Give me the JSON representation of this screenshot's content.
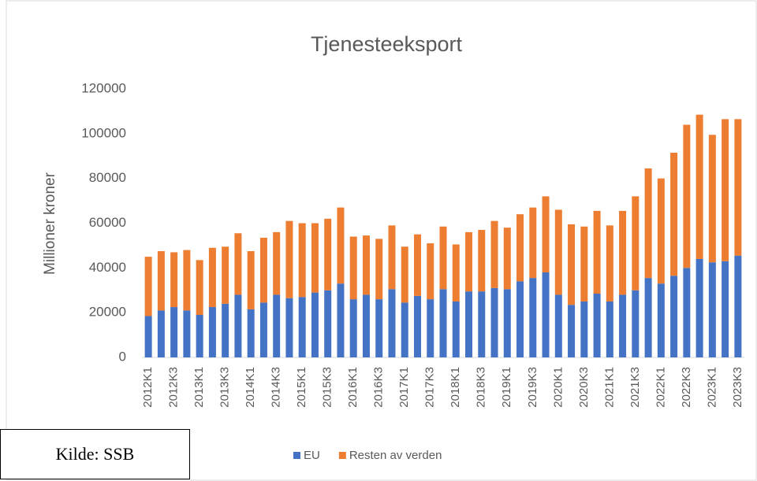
{
  "chart_data": {
    "type": "stacked_bar",
    "title": "Tjenesteeksport",
    "y_label": "Millioner kroner",
    "categories": [
      "2012K1",
      null,
      "2012K3",
      null,
      "2013K1",
      null,
      "2013K3",
      null,
      "2014K1",
      null,
      "2014K3",
      null,
      "2015K1",
      null,
      "2015K3",
      null,
      "2016K1",
      null,
      "2016K3",
      null,
      "2017K1",
      null,
      "2017K3",
      null,
      "2018K1",
      null,
      "2018K3",
      null,
      "2019K1",
      null,
      "2019K3",
      null,
      "2020K1",
      null,
      "2020K3",
      null,
      "2021K1",
      null,
      "2021K3",
      null,
      "2022K1",
      null,
      "2022K3",
      null,
      "2023K1",
      null,
      "2023K3"
    ],
    "series": [
      {
        "name": "EU",
        "color": "#4472c4",
        "values": [
          18500,
          21000,
          22500,
          21000,
          19000,
          22500,
          24000,
          28000,
          21500,
          24500,
          28000,
          26500,
          27000,
          29000,
          30000,
          33000,
          26000,
          28000,
          26000,
          30500,
          24500,
          27500,
          26000,
          30500,
          25000,
          29500,
          29500,
          31000,
          30500,
          34000,
          35500,
          38000,
          28000,
          23500,
          25000,
          28500,
          25000,
          28000,
          30000,
          35500,
          33000,
          36500,
          40000,
          44000,
          42500,
          43000,
          45500
        ]
      },
      {
        "name": "Resten av verden",
        "color": "#ed7d31",
        "values": [
          26500,
          26500,
          24500,
          27000,
          24500,
          26500,
          25500,
          27500,
          26000,
          29000,
          28000,
          34500,
          33000,
          31000,
          32000,
          34000,
          28000,
          26500,
          27000,
          28500,
          25000,
          27500,
          25000,
          28000,
          25500,
          26500,
          27500,
          30000,
          27500,
          30000,
          31500,
          34000,
          38000,
          36000,
          33500,
          37000,
          34000,
          37500,
          42000,
          49000,
          47000,
          55000,
          64000,
          64500,
          57000,
          63500,
          61000
        ]
      }
    ],
    "ylim": [
      0,
      120000
    ],
    "yticks": [
      0,
      20000,
      40000,
      60000,
      80000,
      100000,
      120000
    ],
    "grid": false,
    "legend": "bottom"
  },
  "source": "Kilde: SSB"
}
